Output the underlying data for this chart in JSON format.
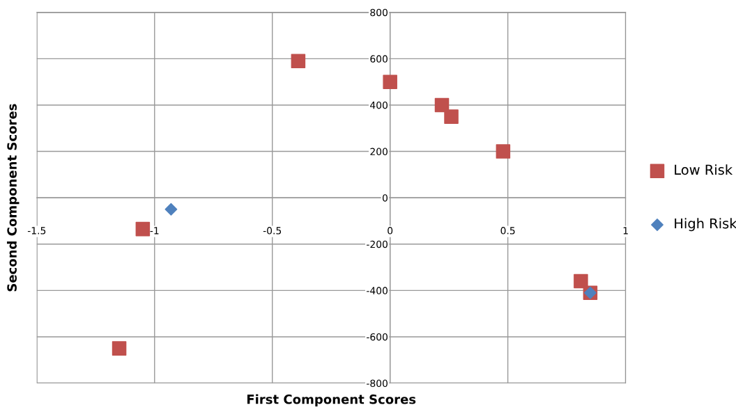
{
  "chart_data": {
    "type": "scatter",
    "xlabel": "First Component Scores",
    "ylabel": "Second Component Scores",
    "xlim": [
      -1.5,
      1
    ],
    "xticks": [
      -1.5,
      -1,
      -0.5,
      0,
      0.5,
      1
    ],
    "ylim": [
      -800,
      800
    ],
    "yticks": [
      -800,
      -600,
      -400,
      -200,
      0,
      200,
      400,
      600,
      800
    ],
    "grid": true,
    "legend": "right",
    "series": [
      {
        "name": "Low Risk",
        "color": "#c0504d",
        "marker": "square",
        "x": [
          -0.39,
          0,
          0.22,
          0.26,
          0.48,
          -1.05,
          -1.15,
          0.81,
          0.85
        ],
        "values": [
          590,
          500,
          400,
          350,
          200,
          -135,
          -650,
          -360,
          -410
        ]
      },
      {
        "name": "High Risk",
        "color": "#4f81bd",
        "marker": "diamond",
        "x": [
          -0.93,
          0.85
        ],
        "values": [
          -50,
          -410
        ]
      }
    ]
  }
}
